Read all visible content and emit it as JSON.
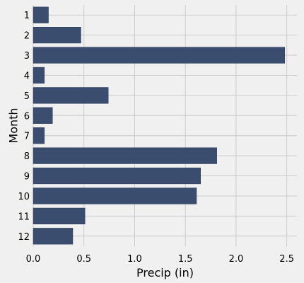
{
  "chart_data": {
    "type": "bar",
    "orientation": "horizontal",
    "title": "",
    "xlabel": "Precip (in)",
    "ylabel": "Month",
    "categories": [
      "1",
      "2",
      "3",
      "4",
      "5",
      "6",
      "7",
      "8",
      "9",
      "10",
      "11",
      "12"
    ],
    "values": [
      0.15,
      0.47,
      2.48,
      0.11,
      0.74,
      0.19,
      0.11,
      1.81,
      1.65,
      1.61,
      0.51,
      0.39
    ],
    "xlim": [
      0,
      2.6
    ],
    "xticks": [
      "0.0",
      "0.5",
      "1.0",
      "1.5",
      "2.0",
      "2.5"
    ],
    "xtick_values": [
      0,
      0.5,
      1.0,
      1.5,
      2.0,
      2.5
    ],
    "grid": true,
    "colors": {
      "bar": "#3b4d6e",
      "bar_edge": "#2c3a55",
      "background": "#f0f0f0",
      "grid": "#cbcbcb"
    }
  }
}
